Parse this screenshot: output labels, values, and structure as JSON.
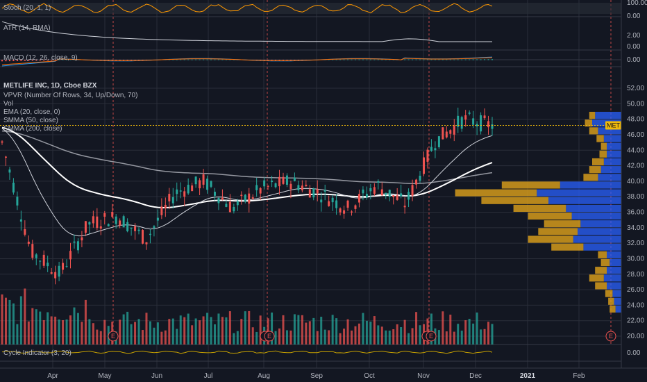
{
  "colors": {
    "background": "#131722",
    "grid": "#2a2e39",
    "up": "#26a69a",
    "down": "#ef5350",
    "vol_up": "#26a69a",
    "vol_down": "#ef5350",
    "vpvr_up": "#2962ff",
    "vpvr_down": "#e0a31c",
    "ema": "#d1d4dc",
    "smma50": "#ffffff",
    "smma200": "#9598a1",
    "stoch": "#ff9800",
    "atr": "#d1d4dc",
    "price_line": "#f0b90b",
    "earnings": "#ef5350"
  },
  "panes": {
    "stoch": {
      "label": "Stoch (20, 1, 1)",
      "ticks": [
        "100.00",
        "0.00"
      ]
    },
    "atr": {
      "label": "ATR (14, RMA)",
      "ticks": [
        "2.00",
        "0.00"
      ]
    },
    "macd": {
      "label": "MACD (12, 26, close, 9)",
      "ticks": [
        "0.00"
      ]
    },
    "cycle": {
      "label": "Cycle Indicator (3, 20)",
      "ticks": [
        "0.00"
      ]
    }
  },
  "main": {
    "legend": [
      "METLIFE INC, 1D, Cboe BZX",
      "VPVR (Number Of Rows, 34, Up/Down, 70)",
      "Vol",
      "EMA (20, close, 0)",
      "SMMA (50, close)",
      "SMMA (200, close)"
    ],
    "price_tag": "MET",
    "earnings_marker": "E"
  },
  "chart_data": {
    "type": "candlestick",
    "symbol": "METLIFE INC",
    "interval": "1D",
    "exchange": "Cboe BZX",
    "x_labels": [
      "Apr",
      "May",
      "Jun",
      "Jul",
      "Aug",
      "Sep",
      "Oct",
      "Nov",
      "Dec",
      "2021",
      "Feb"
    ],
    "y_labels": [
      "20.00",
      "22.00",
      "24.00",
      "26.00",
      "28.00",
      "30.00",
      "32.00",
      "34.00",
      "36.00",
      "38.00",
      "40.00",
      "42.00",
      "44.00",
      "46.00",
      "48.00",
      "50.00",
      "52.00"
    ],
    "ylim": [
      20,
      52
    ],
    "last_price": 47.2,
    "close_path": [
      {
        "month": "Mar",
        "close": 45.0
      },
      {
        "month": "Mar",
        "close": 31.0
      },
      {
        "month": "Apr",
        "close": 28.0
      },
      {
        "month": "Apr",
        "close": 34.5
      },
      {
        "month": "May",
        "close": 35.5
      },
      {
        "month": "May",
        "close": 32.5
      },
      {
        "month": "Jun",
        "close": 38.5
      },
      {
        "month": "Jun",
        "close": 40.0
      },
      {
        "month": "Jul",
        "close": 36.5
      },
      {
        "month": "Aug",
        "close": 39.0
      },
      {
        "month": "Aug",
        "close": 40.0
      },
      {
        "month": "Sep",
        "close": 38.5
      },
      {
        "month": "Oct",
        "close": 36.5
      },
      {
        "month": "Oct",
        "close": 39.5
      },
      {
        "month": "Nov",
        "close": 37.0
      },
      {
        "month": "Nov",
        "close": 45.0
      },
      {
        "month": "Dec",
        "close": 48.0
      },
      {
        "month": "Dec",
        "close": 47.2
      }
    ],
    "moving_averages": [
      {
        "name": "EMA (20, close, 0)",
        "start": 47.0,
        "end": 46.5
      },
      {
        "name": "SMMA (50, close)",
        "start": 47.0,
        "end": 41.5
      },
      {
        "name": "SMMA (200, close)",
        "start": 46.5,
        "end": 41.8
      }
    ],
    "vpvr_profile": [
      {
        "price": 48.5,
        "up": 0.18,
        "down": 0.04
      },
      {
        "price": 47.5,
        "up": 0.2,
        "down": 0.05
      },
      {
        "price": 46.5,
        "up": 0.16,
        "down": 0.06
      },
      {
        "price": 45.5,
        "up": 0.12,
        "down": 0.05
      },
      {
        "price": 44.5,
        "up": 0.1,
        "down": 0.04
      },
      {
        "price": 43.5,
        "up": 0.1,
        "down": 0.05
      },
      {
        "price": 42.5,
        "up": 0.12,
        "down": 0.08
      },
      {
        "price": 41.5,
        "up": 0.14,
        "down": 0.08
      },
      {
        "price": 40.5,
        "up": 0.16,
        "down": 0.1
      },
      {
        "price": 39.5,
        "up": 0.42,
        "down": 0.4
      },
      {
        "price": 38.5,
        "up": 0.58,
        "down": 0.56
      },
      {
        "price": 37.5,
        "up": 0.5,
        "down": 0.46
      },
      {
        "price": 36.5,
        "up": 0.38,
        "down": 0.36
      },
      {
        "price": 35.5,
        "up": 0.34,
        "down": 0.3
      },
      {
        "price": 34.5,
        "up": 0.28,
        "down": 0.25
      },
      {
        "price": 33.5,
        "up": 0.3,
        "down": 0.27
      },
      {
        "price": 32.5,
        "up": 0.33,
        "down": 0.31
      },
      {
        "price": 31.5,
        "up": 0.26,
        "down": 0.22
      },
      {
        "price": 30.5,
        "up": 0.1,
        "down": 0.06
      },
      {
        "price": 29.5,
        "up": 0.08,
        "down": 0.06
      },
      {
        "price": 28.5,
        "up": 0.1,
        "down": 0.08
      },
      {
        "price": 27.5,
        "up": 0.12,
        "down": 0.1
      },
      {
        "price": 26.5,
        "up": 0.1,
        "down": 0.08
      },
      {
        "price": 25.5,
        "up": 0.06,
        "down": 0.05
      },
      {
        "price": 24.5,
        "up": 0.05,
        "down": 0.04
      },
      {
        "price": 23.5,
        "up": 0.04,
        "down": 0.04
      }
    ],
    "indicators": [
      "Stoch (20, 1, 1)",
      "ATR (14, RMA)",
      "MACD (12, 26, close, 9)",
      "Cycle Indicator (3, 20)"
    ]
  }
}
